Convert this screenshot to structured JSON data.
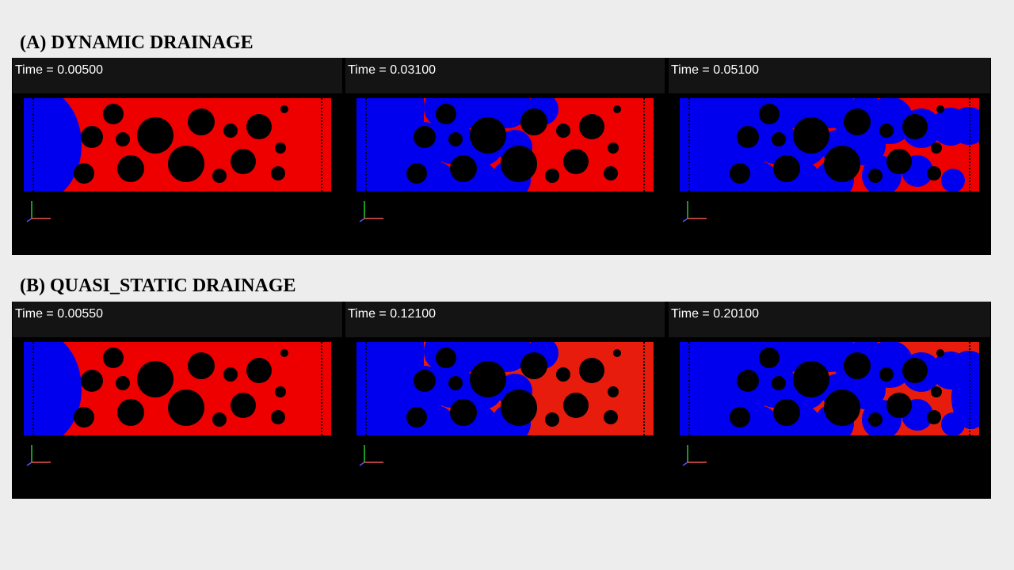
{
  "sections": [
    {
      "title": "(A)  DYNAMIC DRAINAGE",
      "panels": [
        {
          "time": "Time = 0.00500"
        },
        {
          "time": "Time = 0.03100"
        },
        {
          "time": "Time = 0.05100"
        }
      ]
    },
    {
      "title": "(B)  QUASI_STATIC DRAINAGE",
      "panels": [
        {
          "time": "Time = 0.00550"
        },
        {
          "time": "Time = 0.12100"
        },
        {
          "time": "Time = 0.20100"
        }
      ]
    }
  ]
}
